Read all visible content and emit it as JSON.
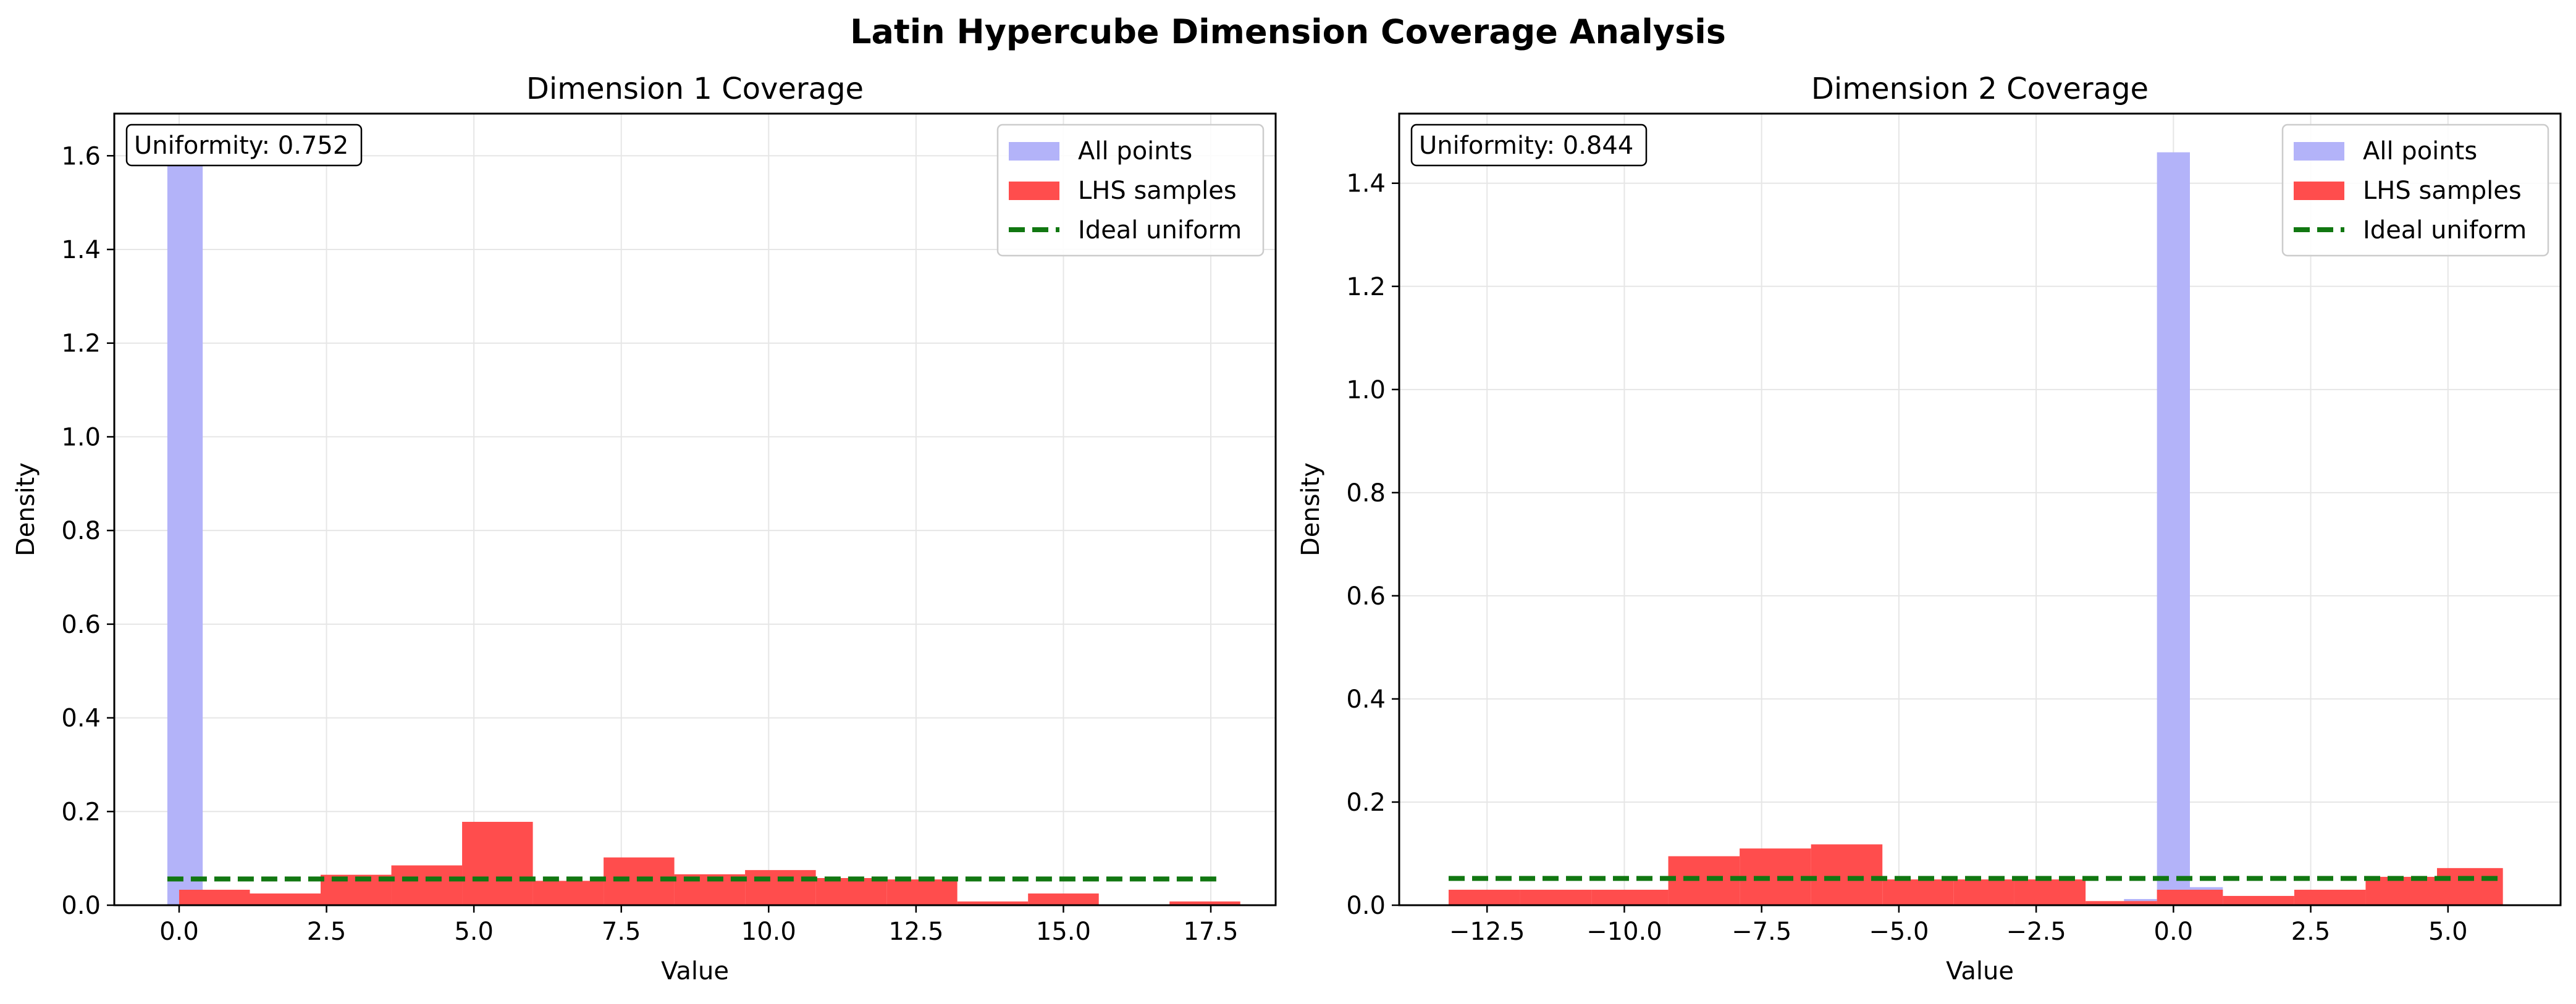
{
  "suptitle": "Latin Hypercube Dimension Coverage Analysis",
  "colors": {
    "all_points": "#b3b3f9",
    "lhs_samples": "#ff4d4d",
    "ideal_uniform": "#117711",
    "grid": "#e6e6e6"
  },
  "chart_data": [
    {
      "type": "bar",
      "title": "Dimension 1 Coverage",
      "xlabel": "Value",
      "ylabel": "Density",
      "xlim": [
        -1.1,
        18.6
      ],
      "ylim": [
        0,
        1.69
      ],
      "xticks": [
        0.0,
        2.5,
        5.0,
        7.5,
        10.0,
        12.5,
        15.0,
        17.5
      ],
      "xtick_labels": [
        "0.0",
        "2.5",
        "5.0",
        "7.5",
        "10.0",
        "12.5",
        "15.0",
        "17.5"
      ],
      "yticks": [
        0.0,
        0.2,
        0.4,
        0.6,
        0.8,
        1.0,
        1.2,
        1.4,
        1.6
      ],
      "ytick_labels": [
        "0.0",
        "0.2",
        "0.4",
        "0.6",
        "0.8",
        "1.0",
        "1.2",
        "1.4",
        "1.6"
      ],
      "grid": true,
      "legend_position": "top-right",
      "annotation": "Uniformity: 0.752",
      "series": [
        {
          "name": "All points",
          "kind": "hist",
          "bins": [
            [
              -0.2,
              0.4,
              1.6
            ]
          ]
        },
        {
          "name": "LHS samples",
          "kind": "hist",
          "bins": [
            [
              0.0,
              1.2,
              0.033
            ],
            [
              1.2,
              2.4,
              0.025
            ],
            [
              2.4,
              3.6,
              0.065
            ],
            [
              3.6,
              4.8,
              0.085
            ],
            [
              4.8,
              6.0,
              0.178
            ],
            [
              6.0,
              7.2,
              0.052
            ],
            [
              7.2,
              8.4,
              0.102
            ],
            [
              8.4,
              9.6,
              0.066
            ],
            [
              9.6,
              10.8,
              0.075
            ],
            [
              10.8,
              12.0,
              0.058
            ],
            [
              12.0,
              13.2,
              0.055
            ],
            [
              13.2,
              14.4,
              0.008
            ],
            [
              14.4,
              15.6,
              0.025
            ],
            [
              15.6,
              16.8,
              0.0
            ],
            [
              16.8,
              18.0,
              0.008
            ]
          ]
        },
        {
          "name": "Ideal uniform",
          "kind": "line",
          "x": [
            -0.2,
            17.7
          ],
          "y": [
            0.056,
            0.056
          ]
        }
      ]
    },
    {
      "type": "bar",
      "title": "Dimension 2 Coverage",
      "xlabel": "Value",
      "ylabel": "Density",
      "xlim": [
        -14.1,
        7.05
      ],
      "ylim": [
        0,
        1.535
      ],
      "xticks": [
        -12.5,
        -10.0,
        -7.5,
        -5.0,
        -2.5,
        0.0,
        2.5,
        5.0
      ],
      "xtick_labels": [
        "−12.5",
        "−10.0",
        "−7.5",
        "−5.0",
        "−2.5",
        "0.0",
        "2.5",
        "5.0"
      ],
      "yticks": [
        0.0,
        0.2,
        0.4,
        0.6,
        0.8,
        1.0,
        1.2,
        1.4
      ],
      "ytick_labels": [
        "0.0",
        "0.2",
        "0.4",
        "0.6",
        "0.8",
        "1.0",
        "1.2",
        "1.4"
      ],
      "grid": true,
      "legend_position": "top-right",
      "annotation": "Uniformity: 0.844",
      "series": [
        {
          "name": "All points",
          "kind": "hist",
          "bins": [
            [
              -0.9,
              -0.3,
              0.012
            ],
            [
              -0.3,
              0.3,
              1.46
            ],
            [
              0.3,
              0.9,
              0.035
            ]
          ]
        },
        {
          "name": "LHS samples",
          "kind": "hist",
          "bins": [
            [
              -13.2,
              -11.9,
              0.03
            ],
            [
              -11.9,
              -10.6,
              0.03
            ],
            [
              -10.6,
              -9.2,
              0.03
            ],
            [
              -9.2,
              -7.9,
              0.095
            ],
            [
              -7.9,
              -6.6,
              0.11
            ],
            [
              -6.6,
              -5.3,
              0.118
            ],
            [
              -5.3,
              -4.0,
              0.05
            ],
            [
              -4.0,
              -2.9,
              0.05
            ],
            [
              -2.9,
              -1.6,
              0.05
            ],
            [
              -1.6,
              -0.3,
              0.008
            ],
            [
              -0.3,
              0.9,
              0.03
            ],
            [
              0.9,
              2.2,
              0.018
            ],
            [
              2.2,
              3.5,
              0.03
            ],
            [
              3.5,
              4.8,
              0.055
            ],
            [
              4.8,
              6.0,
              0.072
            ]
          ]
        },
        {
          "name": "Ideal uniform",
          "kind": "line",
          "x": [
            -13.2,
            6.0
          ],
          "y": [
            0.052,
            0.052
          ]
        }
      ]
    }
  ]
}
